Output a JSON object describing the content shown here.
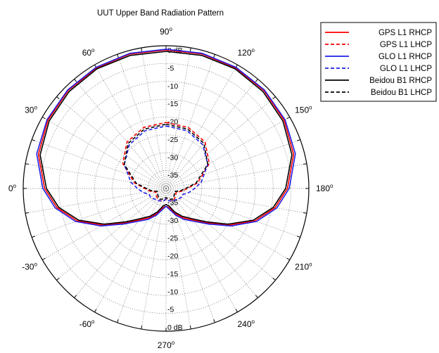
{
  "chart_data": {
    "type": "polar-line",
    "title": "UUT Upper Band Radiation Pattern",
    "radial_range_db": [
      -40,
      0
    ],
    "radial_tick_labels": [
      {
        "value": 0,
        "label": "0 dB"
      },
      {
        "value": -5,
        "label": "-5"
      },
      {
        "value": -10,
        "label": "-10"
      },
      {
        "value": -15,
        "label": "-15"
      },
      {
        "value": -20,
        "label": "-20"
      },
      {
        "value": -25,
        "label": "-25"
      },
      {
        "value": -30,
        "label": "-30"
      },
      {
        "value": -35,
        "label": "-35"
      }
    ],
    "angular_tick_labels": [
      {
        "angle": 0,
        "num": "90",
        "deg": "o"
      },
      {
        "angle": 30,
        "num": "120",
        "deg": "o"
      },
      {
        "angle": 60,
        "num": "150",
        "deg": "o"
      },
      {
        "angle": 90,
        "num": "180",
        "deg": "o"
      },
      {
        "angle": 120,
        "num": "210",
        "deg": "o"
      },
      {
        "angle": 150,
        "num": "240",
        "deg": "o"
      },
      {
        "angle": 180,
        "num": "270",
        "deg": "o"
      },
      {
        "angle": 210,
        "num": "-60",
        "deg": "o"
      },
      {
        "angle": 240,
        "num": "-30",
        "deg": "o"
      },
      {
        "angle": 270,
        "num": "0",
        "deg": "o"
      },
      {
        "angle": 300,
        "num": "30",
        "deg": "o"
      },
      {
        "angle": 330,
        "num": "60",
        "deg": "o"
      }
    ],
    "grid": true,
    "legend_position": "top-right",
    "angle_unit": "degrees clockwise from the 90 label",
    "series": [
      {
        "name": "GPS L1 RHCP",
        "color": "#ff0000",
        "dashed": false,
        "points": [
          [
            0,
            -1.2
          ],
          [
            15,
            -1.0
          ],
          [
            30,
            -1.0
          ],
          [
            45,
            -1.2
          ],
          [
            60,
            -1.8
          ],
          [
            75,
            -3.0
          ],
          [
            90,
            -6.0
          ],
          [
            100,
            -9.0
          ],
          [
            110,
            -13.5
          ],
          [
            120,
            -19.5
          ],
          [
            130,
            -25.0
          ],
          [
            140,
            -28.5
          ],
          [
            150,
            -30.5
          ],
          [
            160,
            -32.5
          ],
          [
            170,
            -34.5
          ],
          [
            180,
            -35.0
          ],
          [
            190,
            -34.5
          ],
          [
            200,
            -32.5
          ],
          [
            210,
            -30.5
          ],
          [
            220,
            -28.5
          ],
          [
            230,
            -25.0
          ],
          [
            240,
            -19.5
          ],
          [
            250,
            -13.5
          ],
          [
            260,
            -9.0
          ],
          [
            270,
            -6.0
          ],
          [
            285,
            -3.0
          ],
          [
            300,
            -1.8
          ],
          [
            315,
            -1.2
          ],
          [
            330,
            -1.0
          ],
          [
            345,
            -1.0
          ],
          [
            360,
            -1.2
          ]
        ]
      },
      {
        "name": "GPS L1 LHCP",
        "color": "#ff0000",
        "dashed": true,
        "points": [
          [
            0,
            -21.5
          ],
          [
            20,
            -21.8
          ],
          [
            40,
            -23.0
          ],
          [
            60,
            -26.0
          ],
          [
            80,
            -31.0
          ],
          [
            90,
            -34.0
          ],
          [
            100,
            -35.5
          ],
          [
            110,
            -37.0
          ],
          [
            130,
            -36.5
          ],
          [
            150,
            -36.0
          ],
          [
            170,
            -36.5
          ],
          [
            180,
            -37.0
          ],
          [
            190,
            -36.5
          ],
          [
            210,
            -36.0
          ],
          [
            230,
            -36.5
          ],
          [
            250,
            -37.0
          ],
          [
            260,
            -35.5
          ],
          [
            270,
            -34.0
          ],
          [
            280,
            -31.0
          ],
          [
            300,
            -26.0
          ],
          [
            320,
            -23.0
          ],
          [
            340,
            -21.8
          ],
          [
            360,
            -21.5
          ]
        ]
      },
      {
        "name": "GLO L1 RHCP",
        "color": "#1e1ee6",
        "dashed": false,
        "points": [
          [
            0,
            -1.0
          ],
          [
            15,
            -0.8
          ],
          [
            30,
            -0.8
          ],
          [
            45,
            -1.0
          ],
          [
            60,
            -1.5
          ],
          [
            75,
            -2.5
          ],
          [
            90,
            -5.5
          ],
          [
            100,
            -8.5
          ],
          [
            110,
            -13.0
          ],
          [
            120,
            -19.0
          ],
          [
            130,
            -24.5
          ],
          [
            140,
            -28.0
          ],
          [
            150,
            -30.0
          ],
          [
            160,
            -32.0
          ],
          [
            170,
            -34.0
          ],
          [
            180,
            -35.0
          ],
          [
            190,
            -34.0
          ],
          [
            200,
            -32.0
          ],
          [
            210,
            -30.0
          ],
          [
            220,
            -28.0
          ],
          [
            230,
            -24.5
          ],
          [
            240,
            -19.0
          ],
          [
            250,
            -13.0
          ],
          [
            260,
            -8.5
          ],
          [
            270,
            -5.5
          ],
          [
            285,
            -2.5
          ],
          [
            300,
            -1.5
          ],
          [
            315,
            -1.0
          ],
          [
            330,
            -0.8
          ],
          [
            345,
            -0.8
          ],
          [
            360,
            -1.0
          ]
        ]
      },
      {
        "name": "GLO L1 LHCP",
        "color": "#1e1ee6",
        "dashed": true,
        "points": [
          [
            0,
            -22.5
          ],
          [
            20,
            -22.8
          ],
          [
            40,
            -24.0
          ],
          [
            60,
            -26.5
          ],
          [
            80,
            -30.0
          ],
          [
            90,
            -32.0
          ],
          [
            100,
            -33.5
          ],
          [
            110,
            -35.0
          ],
          [
            120,
            -35.0
          ],
          [
            130,
            -35.5
          ],
          [
            150,
            -36.0
          ],
          [
            170,
            -36.5
          ],
          [
            180,
            -37.0
          ],
          [
            190,
            -36.5
          ],
          [
            210,
            -36.0
          ],
          [
            230,
            -35.5
          ],
          [
            240,
            -35.0
          ],
          [
            250,
            -35.0
          ],
          [
            260,
            -33.5
          ],
          [
            270,
            -32.0
          ],
          [
            280,
            -30.0
          ],
          [
            300,
            -26.5
          ],
          [
            320,
            -24.0
          ],
          [
            340,
            -22.8
          ],
          [
            360,
            -22.5
          ]
        ]
      },
      {
        "name": "Beidou B1 RHCP",
        "color": "#000000",
        "dashed": false,
        "points": [
          [
            0,
            -1.6
          ],
          [
            15,
            -1.4
          ],
          [
            30,
            -1.3
          ],
          [
            45,
            -1.6
          ],
          [
            60,
            -2.2
          ],
          [
            75,
            -3.5
          ],
          [
            90,
            -6.5
          ],
          [
            100,
            -9.5
          ],
          [
            110,
            -14.0
          ],
          [
            120,
            -20.0
          ],
          [
            130,
            -25.5
          ],
          [
            140,
            -29.0
          ],
          [
            150,
            -31.0
          ],
          [
            160,
            -33.0
          ],
          [
            170,
            -35.0
          ],
          [
            180,
            -35.5
          ],
          [
            190,
            -35.0
          ],
          [
            200,
            -33.0
          ],
          [
            210,
            -31.0
          ],
          [
            220,
            -29.0
          ],
          [
            230,
            -25.5
          ],
          [
            240,
            -20.0
          ],
          [
            250,
            -14.0
          ],
          [
            260,
            -9.5
          ],
          [
            270,
            -6.5
          ],
          [
            285,
            -3.5
          ],
          [
            300,
            -2.2
          ],
          [
            315,
            -1.6
          ],
          [
            330,
            -1.3
          ],
          [
            345,
            -1.4
          ],
          [
            360,
            -1.6
          ]
        ]
      },
      {
        "name": "Beidou B1 LHCP",
        "color": "#000000",
        "dashed": true,
        "points": [
          [
            0,
            -22.0
          ],
          [
            20,
            -22.3
          ],
          [
            40,
            -23.5
          ],
          [
            60,
            -26.5
          ],
          [
            80,
            -31.5
          ],
          [
            90,
            -34.5
          ],
          [
            100,
            -36.0
          ],
          [
            110,
            -37.5
          ],
          [
            130,
            -37.0
          ],
          [
            150,
            -36.5
          ],
          [
            170,
            -37.0
          ],
          [
            180,
            -37.5
          ],
          [
            190,
            -37.0
          ],
          [
            210,
            -36.5
          ],
          [
            230,
            -37.0
          ],
          [
            250,
            -37.5
          ],
          [
            260,
            -36.0
          ],
          [
            270,
            -34.5
          ],
          [
            280,
            -31.5
          ],
          [
            300,
            -26.5
          ],
          [
            320,
            -23.5
          ],
          [
            340,
            -22.3
          ],
          [
            360,
            -22.0
          ]
        ]
      }
    ]
  }
}
